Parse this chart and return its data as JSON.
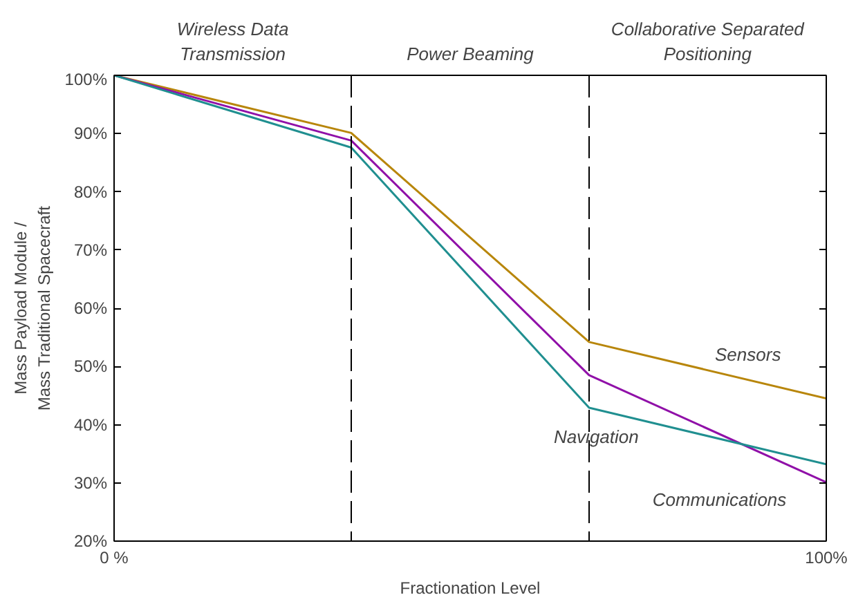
{
  "chart_data": {
    "type": "line",
    "xlabel": "Fractionation Level",
    "ylabel": "Mass Payload Module /\nMass Traditional Spacecraft",
    "x": [
      0,
      33.3,
      66.7,
      100
    ],
    "series": [
      {
        "name": "Sensors",
        "color": "#b8860b",
        "values": [
          100,
          90.1,
          54.2,
          44.5
        ]
      },
      {
        "name": "Communications",
        "color": "#9010a8",
        "values": [
          100,
          88.8,
          48.5,
          30.1
        ]
      },
      {
        "name": "Navigation",
        "color": "#208f90",
        "values": [
          100,
          87.6,
          42.9,
          33.2
        ]
      }
    ],
    "xlim": [
      0,
      100
    ],
    "ylim": [
      20,
      100
    ],
    "xticks": [
      {
        "value": 0,
        "label": "0 %"
      },
      {
        "value": 100,
        "label": "100%"
      }
    ],
    "yticks": [
      {
        "value": 20,
        "label": "20%"
      },
      {
        "value": 30,
        "label": "30%"
      },
      {
        "value": 40,
        "label": "40%"
      },
      {
        "value": 50,
        "label": "50%"
      },
      {
        "value": 60,
        "label": "60%"
      },
      {
        "value": 70,
        "label": "70%"
      },
      {
        "value": 80,
        "label": "80%"
      },
      {
        "value": 90,
        "label": "90%"
      },
      {
        "value": 100,
        "label": "100%"
      }
    ],
    "ref_lines": [
      {
        "axis": "x",
        "value": 33.3,
        "color": "#000000",
        "line_style": "dashed"
      },
      {
        "axis": "x",
        "value": 66.7,
        "color": "#000000",
        "line_style": "dashed"
      }
    ],
    "annotations": [
      "Wireless Data\nTransmission",
      "Power Beaming",
      "Collaborative Separated\nPositioning"
    ],
    "grid": false,
    "legend": false,
    "marker": "none",
    "line_style": "solid"
  }
}
